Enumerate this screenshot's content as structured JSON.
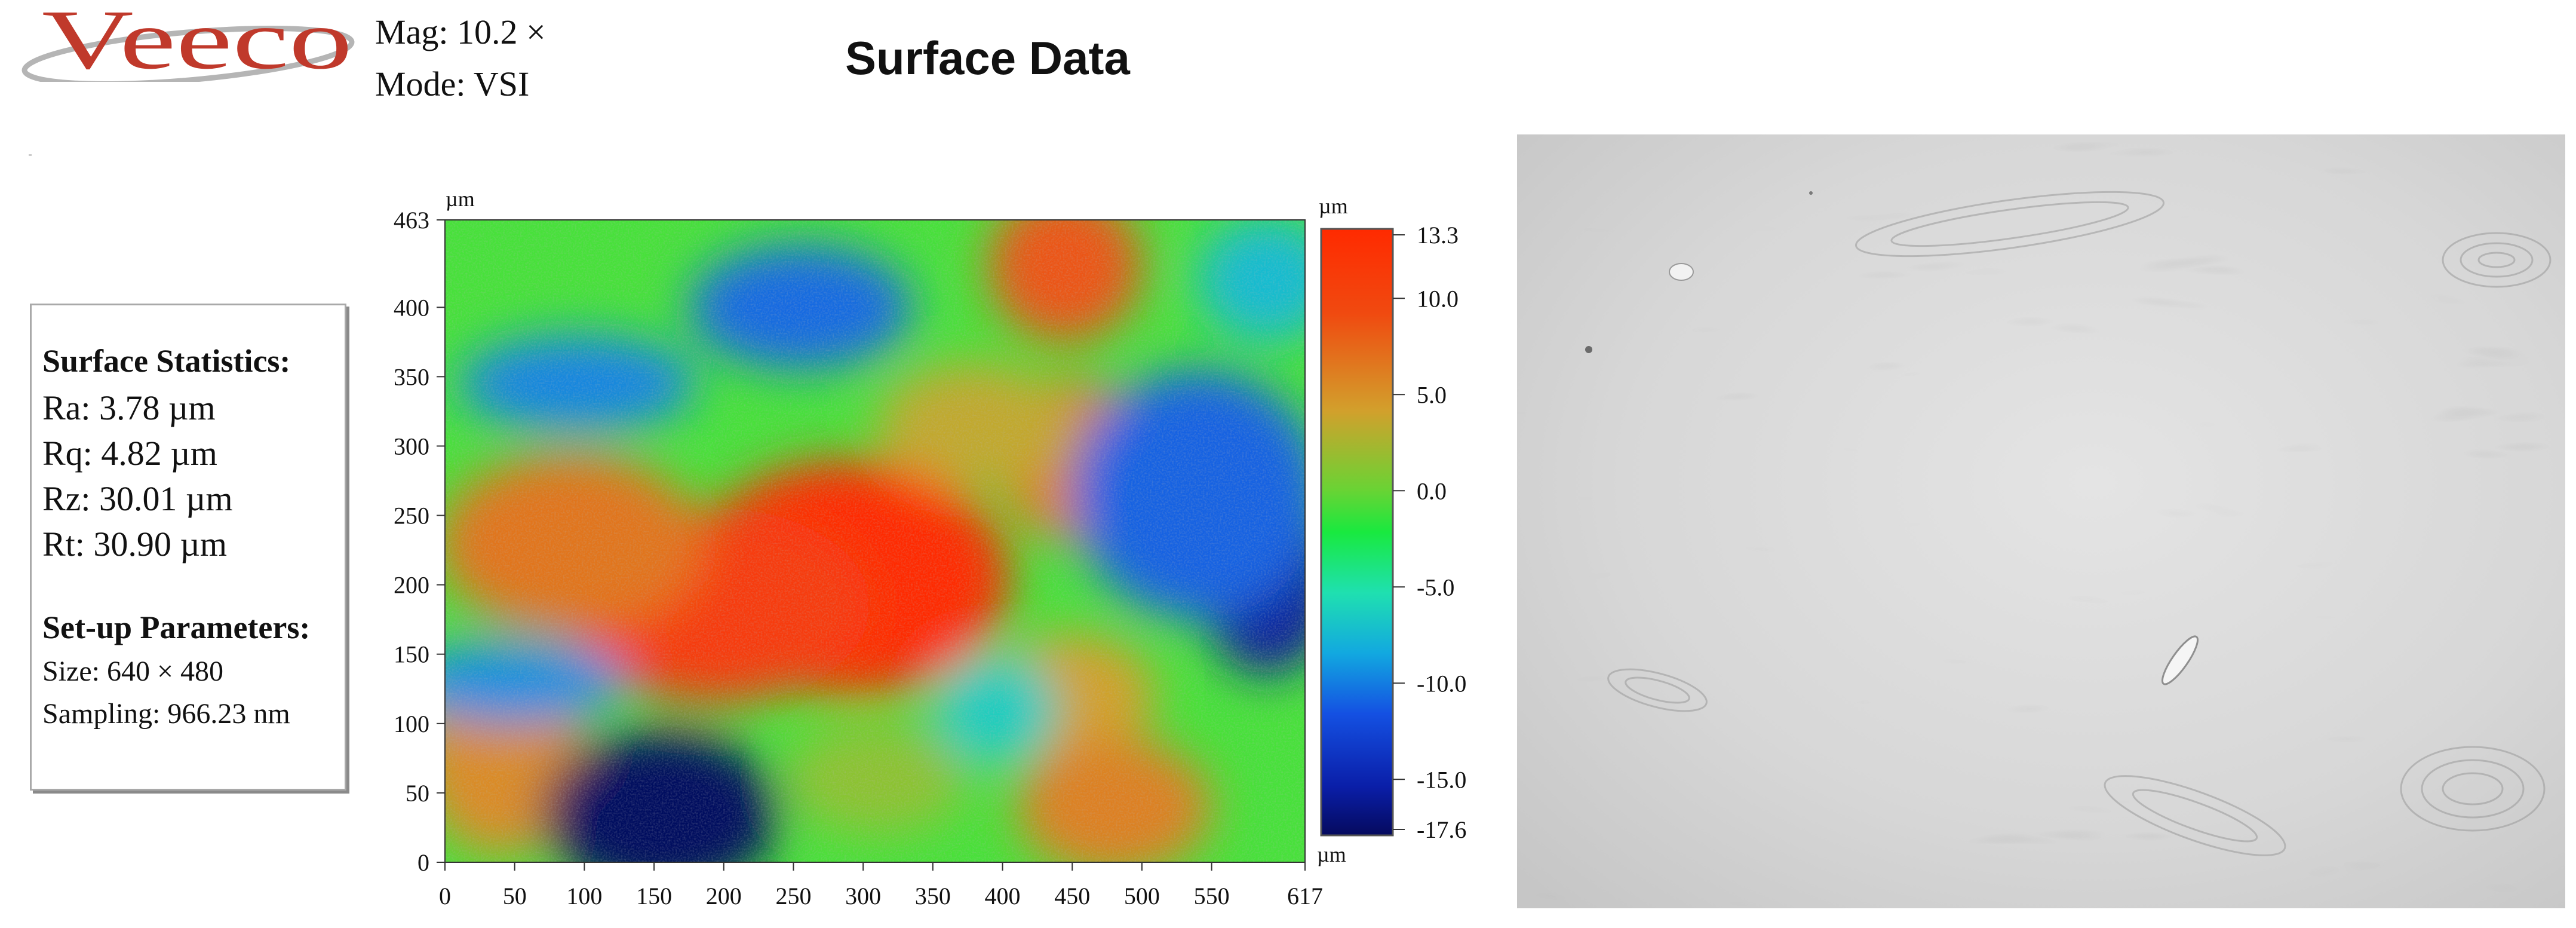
{
  "header": {
    "logo_text": "Veeco",
    "mag_label": "Mag:",
    "mag_value": "10.2 ×",
    "mode_label": "Mode:",
    "mode_value": "VSI",
    "title": "Surface Data"
  },
  "stats": {
    "heading": "Surface Statistics:",
    "ra": "Ra: 3.78 µm",
    "rq": "Rq: 4.82 µm",
    "rz": "Rz: 30.01 µm",
    "rt": "Rt: 30.90 µm",
    "setup_heading": "Set-up Parameters:",
    "size": "Size: 640 × 480",
    "sampling": "Sampling: 966.23 nm"
  },
  "colors": {
    "accent_red": "#c0392b",
    "logo_swoosh": "#b5b5b5"
  },
  "chart_data": {
    "type": "heatmap",
    "x_unit_top": "µm",
    "x_unit_bottom": "µm",
    "colorbar_unit": "µm",
    "xlim": [
      0,
      617
    ],
    "ylim": [
      0,
      463
    ],
    "x_ticks": [
      "0",
      "50",
      "100",
      "150",
      "200",
      "250",
      "300",
      "350",
      "400",
      "450",
      "500",
      "550",
      "617"
    ],
    "y_ticks": [
      "0",
      "50",
      "100",
      "150",
      "200",
      "250",
      "300",
      "350",
      "400",
      "463"
    ],
    "zlim": [
      -17.6,
      13.3
    ],
    "colorbar_ticks": [
      "13.3",
      "10.0",
      "5.0",
      "0.0",
      "-5.0",
      "-10.0",
      "-15.0",
      "-17.6"
    ],
    "features": [
      {
        "x": 290,
        "y": 205,
        "z": 13.3,
        "rx": 115,
        "ry": 85
      },
      {
        "x": 195,
        "y": 185,
        "z": 11.5,
        "rx": 110,
        "ry": 70
      },
      {
        "x": 90,
        "y": 230,
        "z": 8.0,
        "rx": 95,
        "ry": 65
      },
      {
        "x": 445,
        "y": 430,
        "z": 9.5,
        "rx": 55,
        "ry": 55
      },
      {
        "x": 450,
        "y": 290,
        "z": 7.5,
        "rx": 55,
        "ry": 60
      },
      {
        "x": 380,
        "y": 315,
        "z": 5.5,
        "rx": 70,
        "ry": 45
      },
      {
        "x": 450,
        "y": 120,
        "z": 6.0,
        "rx": 60,
        "ry": 45
      },
      {
        "x": 480,
        "y": 40,
        "z": 7.5,
        "rx": 70,
        "ry": 50
      },
      {
        "x": 40,
        "y": 80,
        "z": 7.0,
        "rx": 60,
        "ry": 75
      },
      {
        "x": 310,
        "y": 60,
        "z": 4.0,
        "rx": 65,
        "ry": 40
      },
      {
        "x": 155,
        "y": 35,
        "z": -17.6,
        "rx": 85,
        "ry": 60
      },
      {
        "x": 590,
        "y": 205,
        "z": -15.5,
        "rx": 50,
        "ry": 70
      },
      {
        "x": 540,
        "y": 265,
        "z": -9.0,
        "rx": 90,
        "ry": 90
      },
      {
        "x": 255,
        "y": 400,
        "z": -8.5,
        "rx": 80,
        "ry": 45
      },
      {
        "x": 95,
        "y": 345,
        "z": -7.0,
        "rx": 85,
        "ry": 35
      },
      {
        "x": 50,
        "y": 130,
        "z": -6.5,
        "rx": 80,
        "ry": 30
      },
      {
        "x": 395,
        "y": 110,
        "z": -3.0,
        "rx": 45,
        "ry": 40
      },
      {
        "x": 590,
        "y": 420,
        "z": -4.0,
        "rx": 50,
        "ry": 45
      }
    ]
  }
}
